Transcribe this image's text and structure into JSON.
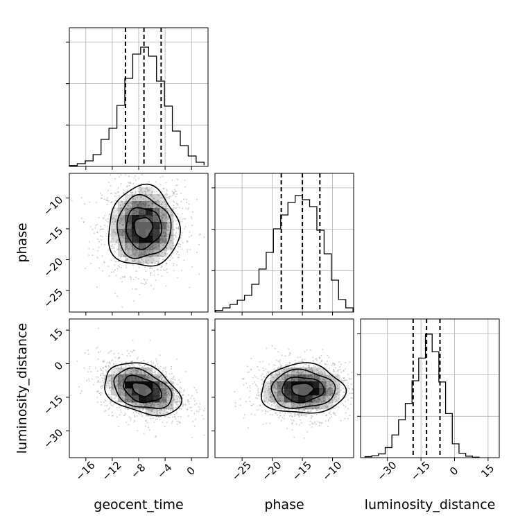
{
  "chart_data": [
    {
      "type": "histogram",
      "panel": "geocent_time-marginal",
      "parameter": "geocent_time",
      "bins": [
        -18.5,
        -17.3,
        -16.1,
        -14.9,
        -13.7,
        -12.5,
        -11.3,
        -10.1,
        -8.9,
        -7.7,
        -6.5,
        -5.3,
        -4.1,
        -2.9,
        -1.7,
        -0.5,
        0.7,
        1.9
      ],
      "counts": [
        0.006,
        0.02,
        0.04,
        0.085,
        0.195,
        0.275,
        0.44,
        0.635,
        0.81,
        0.86,
        0.795,
        0.615,
        0.435,
        0.255,
        0.15,
        0.075,
        0.03,
        0.009
      ],
      "quantiles": [
        -10.0,
        -7.2,
        -4.6
      ],
      "xlim": [
        -18.5,
        2.5
      ],
      "ylim": [
        0,
        1
      ]
    },
    {
      "type": "histogram",
      "panel": "phase-marginal",
      "parameter": "phase",
      "bins": [
        -29.4,
        -28.2,
        -27.0,
        -25.8,
        -24.6,
        -23.4,
        -22.2,
        -21.0,
        -19.8,
        -18.6,
        -17.4,
        -16.2,
        -15.0,
        -13.8,
        -12.6,
        -11.4,
        -10.2,
        -9.0,
        -7.8,
        -6.6
      ],
      "counts": [
        0.012,
        0.03,
        0.055,
        0.085,
        0.12,
        0.2,
        0.31,
        0.43,
        0.6,
        0.7,
        0.79,
        0.84,
        0.81,
        0.76,
        0.59,
        0.42,
        0.23,
        0.09,
        0.03
      ],
      "quantiles": [
        -18.5,
        -15.0,
        -12.1
      ],
      "xlim": [
        -29.5,
        -6.5
      ],
      "ylim": [
        0,
        1
      ]
    },
    {
      "type": "histogram",
      "panel": "luminosity_distance-marginal",
      "parameter": "luminosity_distance",
      "bins": [
        -40,
        -37,
        -34,
        -31,
        -28,
        -25,
        -22,
        -19,
        -16,
        -13,
        -10,
        -7,
        -4,
        -1,
        2,
        5,
        8,
        11
      ],
      "counts": [
        0.008,
        0.015,
        0.03,
        0.08,
        0.18,
        0.3,
        0.43,
        0.61,
        0.79,
        0.98,
        0.84,
        0.6,
        0.35,
        0.11,
        0.035,
        0.012,
        0.004
      ],
      "quantiles": [
        -18.5,
        -12.5,
        -6.5
      ],
      "xlim": [
        -42,
        20
      ],
      "ylim": [
        0,
        1.1
      ]
    },
    {
      "type": "heatmap",
      "panel": "phase-vs-geocent_time",
      "x": "geocent_time",
      "y": "phase",
      "center": [
        -7.3,
        -14.8
      ],
      "spread": [
        2.7,
        3.3
      ],
      "contour_levels": [
        0.12,
        0.39,
        0.68,
        0.86
      ],
      "xlim": [
        -18.5,
        2.5
      ],
      "ylim": [
        -28.5,
        -6.0
      ]
    },
    {
      "type": "heatmap",
      "panel": "luminosity_distance-vs-geocent_time",
      "x": "geocent_time",
      "y": "luminosity_distance",
      "center": [
        -7.5,
        -11.5
      ],
      "spread": [
        2.9,
        5.9
      ],
      "correlation": -0.35,
      "contour_levels": [
        0.12,
        0.39,
        0.68,
        0.86
      ],
      "xlim": [
        -18.5,
        2.5
      ],
      "ylim": [
        -42,
        20
      ]
    },
    {
      "type": "heatmap",
      "panel": "luminosity_distance-vs-phase",
      "x": "phase",
      "y": "luminosity_distance",
      "center": [
        -15.0,
        -11.5
      ],
      "spread": [
        3.5,
        5.6
      ],
      "contour_levels": [
        0.12,
        0.39,
        0.68,
        0.86
      ],
      "xlim": [
        -29.5,
        -6.5
      ],
      "ylim": [
        -42,
        20
      ]
    }
  ],
  "ticks": {
    "geocent_time": {
      "values": [
        -16,
        -12,
        -8,
        -4,
        0
      ],
      "labels": [
        "−16",
        "−12",
        "−8",
        "−4",
        "0"
      ]
    },
    "phase_x": {
      "values": [
        -25,
        -20,
        -15,
        -10
      ],
      "labels": [
        "−25",
        "−20",
        "−15",
        "−10"
      ]
    },
    "phase_y": {
      "values": [
        -10,
        -15,
        -20,
        -25
      ],
      "labels": [
        "−10",
        "−15",
        "−20",
        "−25"
      ]
    },
    "luminosity_distance_x": {
      "values": [
        -30,
        -15,
        0,
        15
      ],
      "labels": [
        "−30",
        "−15",
        "0",
        "15"
      ]
    },
    "luminosity_distance_y": {
      "values": [
        15,
        0,
        -15,
        -30
      ],
      "labels": [
        "15",
        "0",
        "−15",
        "−30"
      ]
    }
  },
  "labels": {
    "x_geocent_time": "geocent_time",
    "x_phase": "phase",
    "x_luminosity_distance": "luminosity_distance",
    "y_phase": "phase",
    "y_luminosity_distance": "luminosity_distance"
  },
  "colors": {
    "line": "#000000",
    "grid": "#b0b0b0",
    "density": "#000000",
    "scatter": "#9a9a9a"
  }
}
